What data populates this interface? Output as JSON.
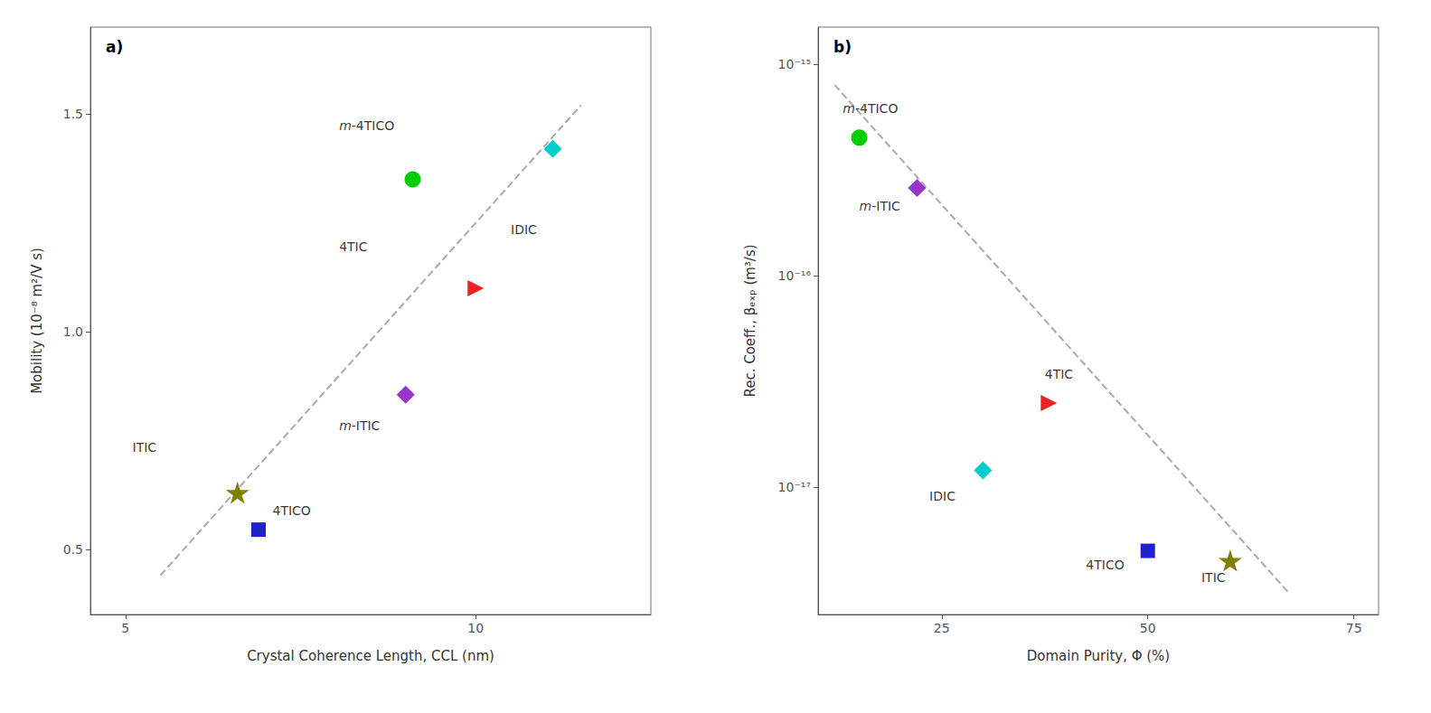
{
  "chart_data": [
    {
      "type": "scatter",
      "title": "a)",
      "xlabel": "Crystal Coherence Length, CCL (nm)",
      "ylabel": "Mobility (10⁻⁸ m²/V s)",
      "xlim": [
        4.5,
        12.5
      ],
      "ylim": [
        0.35,
        1.7
      ],
      "xticks": [
        5,
        10
      ],
      "yticks": [
        0.5,
        {
          "value": 1.0,
          "label": "1.0"
        },
        1.5
      ],
      "grid": false,
      "series": [
        {
          "type": "line",
          "color": "#AAAAAA",
          "line_style": "dashed",
          "x": [
            5.5,
            11.5
          ],
          "values": [
            0.44,
            1.52
          ]
        },
        {
          "color": "#00CC00",
          "marker": "circle",
          "x": [
            9.1
          ],
          "values": [
            1.35
          ]
        },
        {
          "color": "#00CCCC",
          "marker": "diamond",
          "x": [
            11.1
          ],
          "values": [
            1.42
          ]
        },
        {
          "color": "#EE2222",
          "marker": "triangle-right",
          "x": [
            10.0
          ],
          "values": [
            1.1
          ]
        },
        {
          "color": "#9933CC",
          "marker": "diamond",
          "x": [
            9.0
          ],
          "values": [
            0.855
          ]
        },
        {
          "color": "#808000",
          "marker": "star",
          "x": [
            6.6
          ],
          "values": [
            0.63
          ]
        },
        {
          "color": "#2222CC",
          "marker": "square",
          "x": [
            6.9
          ],
          "values": [
            0.545
          ]
        }
      ],
      "annotations": [
        {
          "text": "m-4TICO",
          "x": 8.05,
          "y": 1.46
        },
        {
          "text": "IDIC",
          "x": 10.5,
          "y": 1.22
        },
        {
          "text": "4TIC",
          "x": 8.05,
          "y": 1.18
        },
        {
          "text": "m-ITIC",
          "x": 8.05,
          "y": 0.77
        },
        {
          "text": "ITIC",
          "x": 5.1,
          "y": 0.72
        },
        {
          "text": "4TICO",
          "x": 7.1,
          "y": 0.575
        }
      ]
    },
    {
      "type": "scatter",
      "title": "b)",
      "xlabel": "Domain Purity, Φ (%)",
      "ylabel": "Rec. Coeff., βₑₓₚ (m³/s)",
      "log": "y",
      "xlim": [
        10,
        78
      ],
      "ylim": [
        2.5e-18,
        1.5e-15
      ],
      "xticks": [
        25,
        50,
        75
      ],
      "yticks": [
        {
          "value": 1e-17,
          "label": "10⁻¹⁷"
        },
        {
          "value": 1e-16,
          "label": "10⁻¹⁶"
        },
        {
          "value": 1e-15,
          "label": "10⁻¹⁵"
        }
      ],
      "grid": false,
      "series": [
        {
          "type": "line",
          "color": "#AAAAAA",
          "line_style": "dashed",
          "x": [
            12.0,
            67.0
          ],
          "values": [
            8e-16,
            3.2e-18
          ]
        },
        {
          "color": "#00CC00",
          "marker": "circle",
          "x": [
            15.0
          ],
          "values": [
            4.5e-16
          ]
        },
        {
          "color": "#9933CC",
          "marker": "diamond",
          "x": [
            22.0
          ],
          "values": [
            2.6e-16
          ]
        },
        {
          "color": "#00CCCC",
          "marker": "diamond",
          "x": [
            30.0
          ],
          "values": [
            1.2e-17
          ]
        },
        {
          "color": "#EE2222",
          "marker": "triangle-right",
          "x": [
            38.0
          ],
          "values": [
            2.5e-17
          ]
        },
        {
          "color": "#2222CC",
          "marker": "square",
          "x": [
            50.0
          ],
          "values": [
            5e-18
          ]
        },
        {
          "color": "#808000",
          "marker": "star",
          "x": [
            60.0
          ],
          "values": [
            4.5e-18
          ]
        }
      ],
      "annotations": [
        {
          "text": "m-4TICO",
          "x": 13.0,
          "y": 5.8e-16
        },
        {
          "text": "m-ITIC",
          "x": 15.0,
          "y": 2e-16
        },
        {
          "text": "IDIC",
          "x": 23.5,
          "y": 8.5e-18
        },
        {
          "text": "4TIC",
          "x": 37.5,
          "y": 3.2e-17
        },
        {
          "text": "4TICO",
          "x": 42.5,
          "y": 4e-18
        },
        {
          "text": "ITIC",
          "x": 56.5,
          "y": 3.5e-18
        }
      ]
    }
  ]
}
